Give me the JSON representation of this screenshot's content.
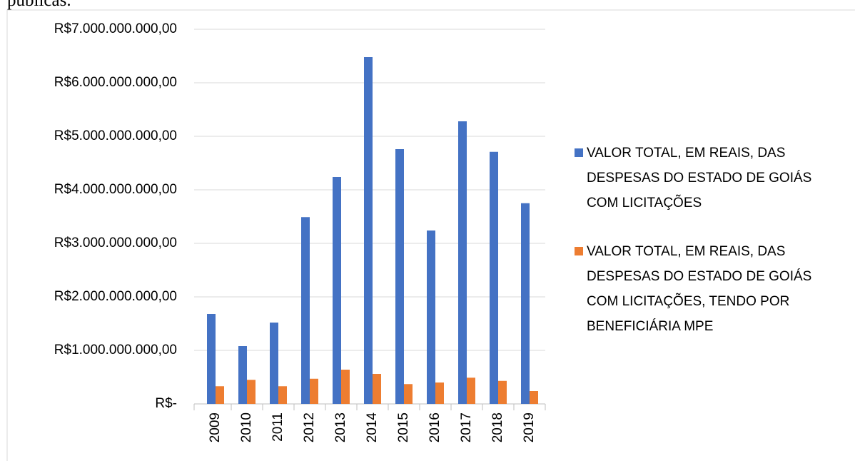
{
  "header_text": "públicas.",
  "chart_data": {
    "type": "bar",
    "categories": [
      "2009",
      "2010",
      "2011",
      "2012",
      "2013",
      "2014",
      "2015",
      "2016",
      "2017",
      "2018",
      "2019"
    ],
    "series": [
      {
        "name": "VALOR TOTAL, EM REAIS, DAS DESPESAS DO ESTADO DE GOIÁS COM LICITAÇÕES",
        "color": "#4472c4",
        "values": [
          1680000000,
          1080000000,
          1520000000,
          3490000000,
          4240000000,
          6480000000,
          4760000000,
          3240000000,
          5280000000,
          4710000000,
          3750000000
        ]
      },
      {
        "name": "VALOR TOTAL, EM REAIS, DAS DESPESAS DO ESTADO DE GOIÁS COM LICITAÇÕES, TENDO POR BENEFICIÁRIA MPE",
        "color": "#ed7d31",
        "values": [
          330000000,
          450000000,
          330000000,
          470000000,
          640000000,
          560000000,
          370000000,
          400000000,
          490000000,
          430000000,
          240000000
        ]
      }
    ],
    "ylim": [
      0,
      7000000000
    ],
    "yticks": [
      {
        "value": 0,
        "label": "R$-"
      },
      {
        "value": 1000000000,
        "label": "R$1.000.000.000,00"
      },
      {
        "value": 2000000000,
        "label": "R$2.000.000.000,00"
      },
      {
        "value": 3000000000,
        "label": "R$3.000.000.000,00"
      },
      {
        "value": 4000000000,
        "label": "R$4.000.000.000,00"
      },
      {
        "value": 5000000000,
        "label": "R$5.000.000.000,00"
      },
      {
        "value": 6000000000,
        "label": "R$6.000.000.000,00"
      },
      {
        "value": 7000000000,
        "label": "R$7.000.000.000,00"
      }
    ],
    "grid": true,
    "legend": "right"
  }
}
